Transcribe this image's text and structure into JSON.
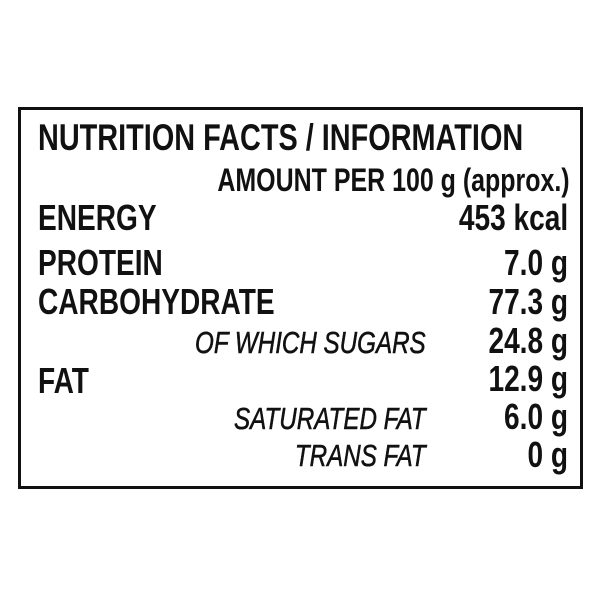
{
  "title": "NUTRITION FACTS / INFORMATION",
  "subtitle": "AMOUNT PER 100 g (approx.)",
  "rows": [
    {
      "label": "ENERGY",
      "value": "453 kcal"
    },
    {
      "label": "PROTEIN",
      "value": "7.0 g"
    },
    {
      "label": "CARBOHYDRATE",
      "value": "77.3 g"
    },
    {
      "label": "OF WHICH SUGARS",
      "value": "24.8 g"
    },
    {
      "label": "FAT",
      "value": "12.9 g"
    },
    {
      "label": "SATURATED FAT",
      "value": "6.0 g"
    },
    {
      "label": "TRANS FAT",
      "value": "0 g"
    }
  ]
}
